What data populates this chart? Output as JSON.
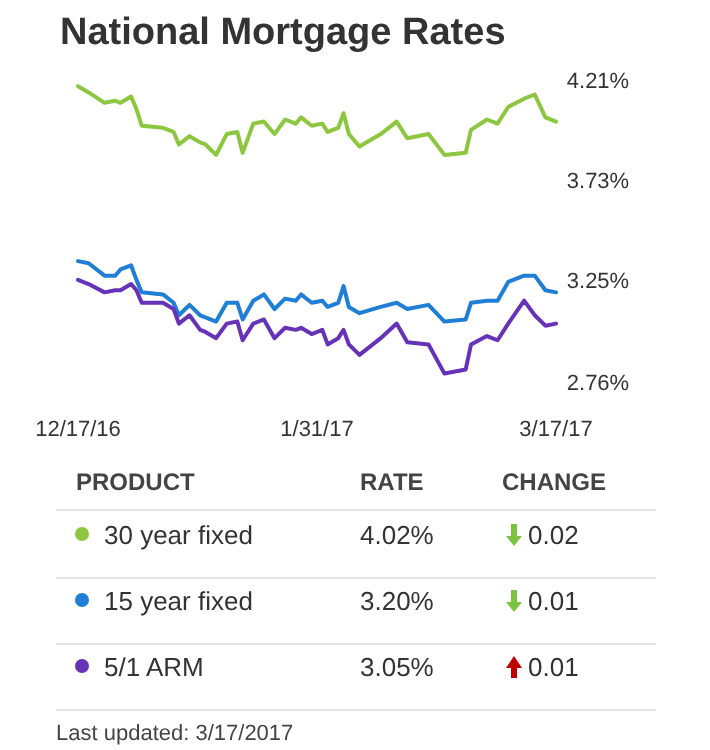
{
  "chart_data": {
    "type": "line",
    "title": "National Mortgage Rates",
    "x": [
      "2016-12-17",
      "2016-12-19",
      "2016-12-22",
      "2016-12-24",
      "2016-12-25",
      "2016-12-27",
      "2016-12-28",
      "2016-12-29",
      "2017-01-02",
      "2017-01-04",
      "2017-01-05",
      "2017-01-07",
      "2017-01-09",
      "2017-01-10",
      "2017-01-12",
      "2017-01-14",
      "2017-01-16",
      "2017-01-17",
      "2017-01-19",
      "2017-01-21",
      "2017-01-23",
      "2017-01-25",
      "2017-01-27",
      "2017-01-28",
      "2017-01-30",
      "2017-02-01",
      "2017-02-02",
      "2017-02-04",
      "2017-02-05",
      "2017-02-06",
      "2017-02-08",
      "2017-02-12",
      "2017-02-15",
      "2017-02-17",
      "2017-02-21",
      "2017-02-24",
      "2017-02-28",
      "2017-03-01",
      "2017-03-04",
      "2017-03-06",
      "2017-03-08",
      "2017-03-11",
      "2017-03-13",
      "2017-03-15",
      "2017-03-17"
    ],
    "series": [
      {
        "name": "30 year fixed",
        "color": "#8dc63f",
        "values": [
          4.19,
          4.16,
          4.11,
          4.12,
          4.11,
          4.14,
          4.08,
          4.0,
          3.99,
          3.97,
          3.91,
          3.95,
          3.92,
          3.91,
          3.86,
          3.96,
          3.97,
          3.87,
          4.01,
          4.02,
          3.96,
          4.03,
          4.01,
          4.04,
          4.0,
          4.01,
          3.97,
          3.99,
          4.06,
          3.96,
          3.9,
          3.96,
          4.02,
          3.94,
          3.96,
          3.86,
          3.87,
          3.98,
          4.03,
          4.01,
          4.09,
          4.13,
          4.15,
          4.04,
          4.02
        ]
      },
      {
        "name": "15 year fixed",
        "color": "#1f7ed6",
        "values": [
          3.35,
          3.34,
          3.28,
          3.28,
          3.31,
          3.33,
          3.26,
          3.2,
          3.19,
          3.15,
          3.09,
          3.14,
          3.09,
          3.08,
          3.06,
          3.15,
          3.15,
          3.07,
          3.16,
          3.19,
          3.12,
          3.17,
          3.16,
          3.19,
          3.15,
          3.16,
          3.13,
          3.15,
          3.23,
          3.13,
          3.1,
          3.13,
          3.15,
          3.12,
          3.14,
          3.06,
          3.07,
          3.15,
          3.16,
          3.16,
          3.25,
          3.28,
          3.28,
          3.21,
          3.2
        ]
      },
      {
        "name": "5/1 ARM",
        "color": "#6632b8",
        "values": [
          3.26,
          3.24,
          3.2,
          3.21,
          3.21,
          3.24,
          3.21,
          3.15,
          3.15,
          3.12,
          3.05,
          3.09,
          3.02,
          3.01,
          2.98,
          3.05,
          3.06,
          2.97,
          3.05,
          3.07,
          2.98,
          3.03,
          3.02,
          3.03,
          3.0,
          3.02,
          2.95,
          2.98,
          3.02,
          2.95,
          2.9,
          2.98,
          3.05,
          2.96,
          2.95,
          2.81,
          2.83,
          2.95,
          2.99,
          2.97,
          3.05,
          3.16,
          3.09,
          3.04,
          3.05
        ]
      }
    ],
    "xlim": [
      "2016-12-17",
      "2017-03-17"
    ],
    "xticks": [
      {
        "value": "2016-12-17",
        "label": "12/17/16"
      },
      {
        "value": "2017-01-31",
        "label": "1/31/17"
      },
      {
        "value": "2017-03-17",
        "label": "3/17/17"
      }
    ],
    "ylim": [
      2.76,
      4.21
    ],
    "yticks": [
      {
        "value": 4.21,
        "label": "4.21%"
      },
      {
        "value": 3.73,
        "label": "3.73%"
      },
      {
        "value": 3.25,
        "label": "3.25%"
      },
      {
        "value": 2.76,
        "label": "2.76%"
      }
    ],
    "legend": "bottom",
    "annotations": [
      "PRODUCT",
      "RATE",
      "CHANGE",
      "4.02%",
      "0.02",
      "3.20%",
      "0.01",
      "3.05%",
      "0.01",
      "Last updated: 3/17/2017"
    ]
  }
}
